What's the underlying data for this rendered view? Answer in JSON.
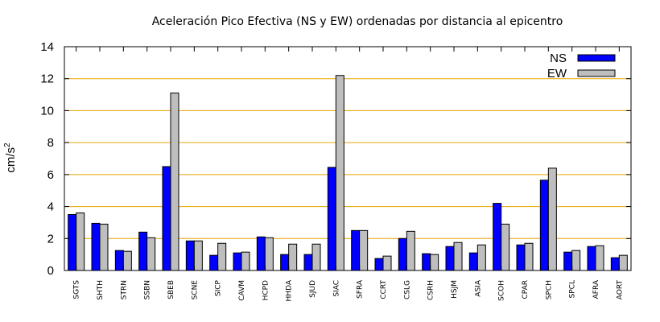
{
  "chart_data": {
    "type": "bar",
    "title": "Aceleración Pico Efectiva (NS y EW) ordenadas por distancia al epicentro",
    "ylabel": "cm/s",
    "ylabel_sup": "2",
    "xlabel": "",
    "ylim": [
      0,
      14
    ],
    "yticks": [
      "0",
      "2",
      "4",
      "6",
      "8",
      "10",
      "12",
      "14"
    ],
    "grid": "horizontal",
    "legend_position": "top-right",
    "categories": [
      "SGTS",
      "SHTH",
      "STRN",
      "SSBN",
      "SBEB",
      "SCNE",
      "SICP",
      "CAVM",
      "HCPD",
      "HHDA",
      "SJUD",
      "SIAC",
      "SFRA",
      "CCRT",
      "CSLG",
      "CSRH",
      "HSJM",
      "ASIA",
      "SCOH",
      "CPAR",
      "SPCH",
      "SPCL",
      "AFRA",
      "AORT"
    ],
    "series": [
      {
        "name": "NS",
        "color": "#0000ff",
        "values": [
          3.5,
          2.95,
          1.25,
          2.4,
          6.5,
          1.85,
          0.95,
          1.1,
          2.1,
          1.0,
          1.0,
          6.45,
          2.5,
          0.75,
          2.0,
          1.05,
          1.5,
          1.1,
          4.2,
          1.6,
          5.65,
          1.15,
          1.5,
          0.8
        ]
      },
      {
        "name": "EW",
        "color": "#bebebe",
        "values": [
          3.6,
          2.9,
          1.2,
          2.05,
          11.1,
          1.85,
          1.7,
          1.15,
          2.05,
          1.65,
          1.65,
          12.2,
          2.5,
          0.9,
          2.45,
          1.0,
          1.75,
          1.6,
          2.9,
          1.7,
          6.4,
          1.25,
          1.55,
          0.95
        ]
      }
    ]
  }
}
